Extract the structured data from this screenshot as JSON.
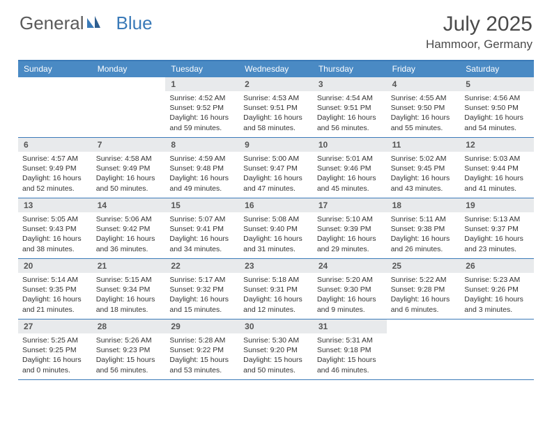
{
  "logo": {
    "part1": "General",
    "part2": "Blue"
  },
  "title": "July 2025",
  "location": "Hammoor, Germany",
  "dayNames": [
    "Sunday",
    "Monday",
    "Tuesday",
    "Wednesday",
    "Thursday",
    "Friday",
    "Saturday"
  ],
  "colors": {
    "accent": "#4a8ac4",
    "border": "#3a7ab8",
    "dayNumBg": "#e8eaec",
    "text": "#333333",
    "titleText": "#4a4a4a"
  },
  "startWeekday": 2,
  "days": [
    {
      "n": 1,
      "sunrise": "4:52 AM",
      "sunset": "9:52 PM",
      "daylight": "16 hours and 59 minutes."
    },
    {
      "n": 2,
      "sunrise": "4:53 AM",
      "sunset": "9:51 PM",
      "daylight": "16 hours and 58 minutes."
    },
    {
      "n": 3,
      "sunrise": "4:54 AM",
      "sunset": "9:51 PM",
      "daylight": "16 hours and 56 minutes."
    },
    {
      "n": 4,
      "sunrise": "4:55 AM",
      "sunset": "9:50 PM",
      "daylight": "16 hours and 55 minutes."
    },
    {
      "n": 5,
      "sunrise": "4:56 AM",
      "sunset": "9:50 PM",
      "daylight": "16 hours and 54 minutes."
    },
    {
      "n": 6,
      "sunrise": "4:57 AM",
      "sunset": "9:49 PM",
      "daylight": "16 hours and 52 minutes."
    },
    {
      "n": 7,
      "sunrise": "4:58 AM",
      "sunset": "9:49 PM",
      "daylight": "16 hours and 50 minutes."
    },
    {
      "n": 8,
      "sunrise": "4:59 AM",
      "sunset": "9:48 PM",
      "daylight": "16 hours and 49 minutes."
    },
    {
      "n": 9,
      "sunrise": "5:00 AM",
      "sunset": "9:47 PM",
      "daylight": "16 hours and 47 minutes."
    },
    {
      "n": 10,
      "sunrise": "5:01 AM",
      "sunset": "9:46 PM",
      "daylight": "16 hours and 45 minutes."
    },
    {
      "n": 11,
      "sunrise": "5:02 AM",
      "sunset": "9:45 PM",
      "daylight": "16 hours and 43 minutes."
    },
    {
      "n": 12,
      "sunrise": "5:03 AM",
      "sunset": "9:44 PM",
      "daylight": "16 hours and 41 minutes."
    },
    {
      "n": 13,
      "sunrise": "5:05 AM",
      "sunset": "9:43 PM",
      "daylight": "16 hours and 38 minutes."
    },
    {
      "n": 14,
      "sunrise": "5:06 AM",
      "sunset": "9:42 PM",
      "daylight": "16 hours and 36 minutes."
    },
    {
      "n": 15,
      "sunrise": "5:07 AM",
      "sunset": "9:41 PM",
      "daylight": "16 hours and 34 minutes."
    },
    {
      "n": 16,
      "sunrise": "5:08 AM",
      "sunset": "9:40 PM",
      "daylight": "16 hours and 31 minutes."
    },
    {
      "n": 17,
      "sunrise": "5:10 AM",
      "sunset": "9:39 PM",
      "daylight": "16 hours and 29 minutes."
    },
    {
      "n": 18,
      "sunrise": "5:11 AM",
      "sunset": "9:38 PM",
      "daylight": "16 hours and 26 minutes."
    },
    {
      "n": 19,
      "sunrise": "5:13 AM",
      "sunset": "9:37 PM",
      "daylight": "16 hours and 23 minutes."
    },
    {
      "n": 20,
      "sunrise": "5:14 AM",
      "sunset": "9:35 PM",
      "daylight": "16 hours and 21 minutes."
    },
    {
      "n": 21,
      "sunrise": "5:15 AM",
      "sunset": "9:34 PM",
      "daylight": "16 hours and 18 minutes."
    },
    {
      "n": 22,
      "sunrise": "5:17 AM",
      "sunset": "9:32 PM",
      "daylight": "16 hours and 15 minutes."
    },
    {
      "n": 23,
      "sunrise": "5:18 AM",
      "sunset": "9:31 PM",
      "daylight": "16 hours and 12 minutes."
    },
    {
      "n": 24,
      "sunrise": "5:20 AM",
      "sunset": "9:30 PM",
      "daylight": "16 hours and 9 minutes."
    },
    {
      "n": 25,
      "sunrise": "5:22 AM",
      "sunset": "9:28 PM",
      "daylight": "16 hours and 6 minutes."
    },
    {
      "n": 26,
      "sunrise": "5:23 AM",
      "sunset": "9:26 PM",
      "daylight": "16 hours and 3 minutes."
    },
    {
      "n": 27,
      "sunrise": "5:25 AM",
      "sunset": "9:25 PM",
      "daylight": "16 hours and 0 minutes."
    },
    {
      "n": 28,
      "sunrise": "5:26 AM",
      "sunset": "9:23 PM",
      "daylight": "15 hours and 56 minutes."
    },
    {
      "n": 29,
      "sunrise": "5:28 AM",
      "sunset": "9:22 PM",
      "daylight": "15 hours and 53 minutes."
    },
    {
      "n": 30,
      "sunrise": "5:30 AM",
      "sunset": "9:20 PM",
      "daylight": "15 hours and 50 minutes."
    },
    {
      "n": 31,
      "sunrise": "5:31 AM",
      "sunset": "9:18 PM",
      "daylight": "15 hours and 46 minutes."
    }
  ],
  "labels": {
    "sunrise": "Sunrise:",
    "sunset": "Sunset:",
    "daylight": "Daylight:"
  }
}
